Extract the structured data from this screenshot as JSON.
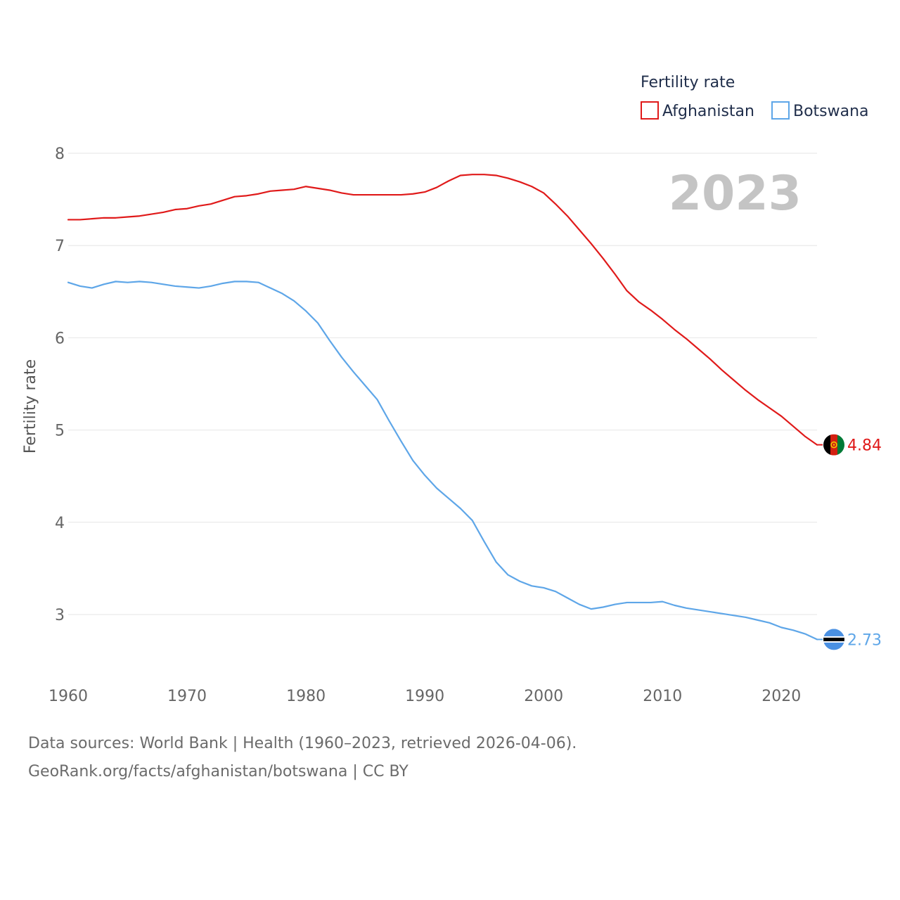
{
  "colors": {
    "afghanistan": "#e01a1a",
    "botswana": "#5ea6e8"
  },
  "chart_data": {
    "type": "line",
    "title": "",
    "xlabel": "",
    "ylabel": "Fertility rate",
    "legend_title": "Fertility rate",
    "year_display": "2023",
    "xlim": [
      1960,
      2023
    ],
    "ylim": [
      2.5,
      8.2
    ],
    "x_ticks": [
      1960,
      1970,
      1980,
      1990,
      2000,
      2010,
      2020
    ],
    "x_tick_labels": [
      "1960",
      "1970",
      "1980",
      "1990",
      "2000",
      "2010",
      "2020"
    ],
    "y_ticks": [
      3,
      4,
      5,
      6,
      7,
      8
    ],
    "y_tick_labels": [
      "3",
      "4",
      "5",
      "6",
      "7",
      "8"
    ],
    "x": [
      1960,
      1961,
      1962,
      1963,
      1964,
      1965,
      1966,
      1967,
      1968,
      1969,
      1970,
      1971,
      1972,
      1973,
      1974,
      1975,
      1976,
      1977,
      1978,
      1979,
      1980,
      1981,
      1982,
      1983,
      1984,
      1985,
      1986,
      1987,
      1988,
      1989,
      1990,
      1991,
      1992,
      1993,
      1994,
      1995,
      1996,
      1997,
      1998,
      1999,
      2000,
      2001,
      2002,
      2003,
      2004,
      2005,
      2006,
      2007,
      2008,
      2009,
      2010,
      2011,
      2012,
      2013,
      2014,
      2015,
      2016,
      2017,
      2018,
      2019,
      2020,
      2021,
      2022,
      2023
    ],
    "series": [
      {
        "name": "Afghanistan",
        "color_key": "afghanistan",
        "end_label": "4.84",
        "values": [
          7.28,
          7.28,
          7.29,
          7.3,
          7.3,
          7.31,
          7.32,
          7.34,
          7.36,
          7.39,
          7.4,
          7.43,
          7.45,
          7.49,
          7.53,
          7.54,
          7.56,
          7.59,
          7.6,
          7.61,
          7.64,
          7.62,
          7.6,
          7.57,
          7.55,
          7.55,
          7.55,
          7.55,
          7.55,
          7.56,
          7.58,
          7.63,
          7.7,
          7.76,
          7.77,
          7.77,
          7.76,
          7.73,
          7.69,
          7.64,
          7.57,
          7.45,
          7.32,
          7.17,
          7.02,
          6.86,
          6.69,
          6.51,
          6.39,
          6.3,
          6.2,
          6.09,
          5.99,
          5.88,
          5.77,
          5.65,
          5.54,
          5.43,
          5.33,
          5.24,
          5.15,
          5.04,
          4.93,
          4.84
        ]
      },
      {
        "name": "Botswana",
        "color_key": "botswana",
        "end_label": "2.73",
        "values": [
          6.6,
          6.56,
          6.54,
          6.58,
          6.61,
          6.6,
          6.61,
          6.6,
          6.58,
          6.56,
          6.55,
          6.54,
          6.56,
          6.59,
          6.61,
          6.61,
          6.6,
          6.54,
          6.48,
          6.4,
          6.29,
          6.16,
          5.97,
          5.79,
          5.63,
          5.48,
          5.33,
          5.1,
          4.88,
          4.67,
          4.51,
          4.37,
          4.26,
          4.15,
          4.02,
          3.79,
          3.57,
          3.43,
          3.36,
          3.31,
          3.29,
          3.25,
          3.18,
          3.11,
          3.06,
          3.08,
          3.11,
          3.13,
          3.13,
          3.13,
          3.14,
          3.1,
          3.07,
          3.05,
          3.03,
          3.01,
          2.99,
          2.97,
          2.94,
          2.91,
          2.86,
          2.83,
          2.79,
          2.73
        ]
      }
    ]
  },
  "footer": {
    "line1": "Data sources: World Bank | Health (1960–2023, retrieved 2026-04-06).",
    "line2": "GeoRank.org/facts/afghanistan/botswana | CC BY"
  },
  "icons": {
    "afghanistan": "afghanistan-flag-icon",
    "botswana": "botswana-flag-icon"
  }
}
